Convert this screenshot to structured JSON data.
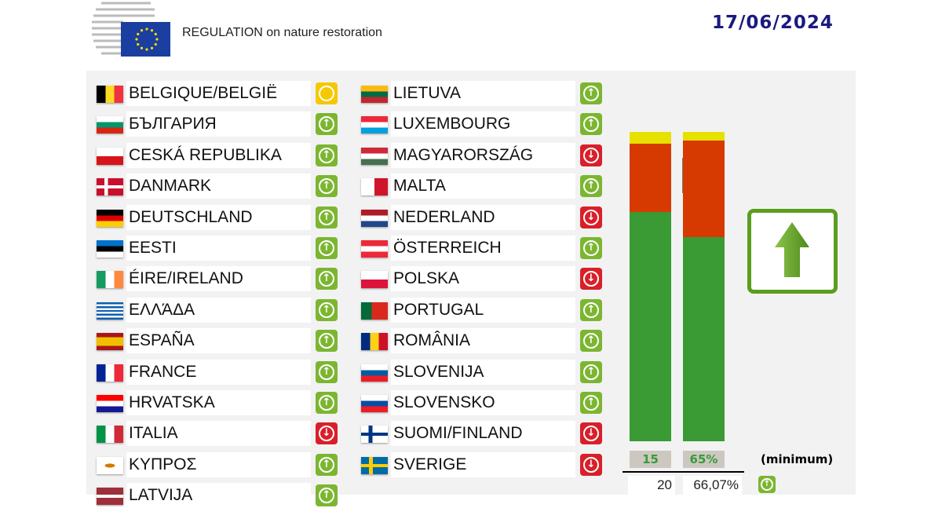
{
  "header": {
    "title": "REGULATION on nature restoration",
    "date": "17/06/2024"
  },
  "colors": {
    "yes": "#7cb631",
    "no": "#d8202a",
    "abstain": "#f5c800",
    "bar_yes": "#3a9a34",
    "bar_no": "#d63a00",
    "bar_abstain": "#e6e100"
  },
  "countries_left": [
    {
      "name": "BELGIQUE/BELGIË",
      "flag": "be",
      "vote": "abstain"
    },
    {
      "name": "БЪЛГАРИЯ",
      "flag": "bg",
      "vote": "yes"
    },
    {
      "name": "CESKÁ REPUBLIKA",
      "flag": "cz",
      "vote": "yes"
    },
    {
      "name": "DANMARK",
      "flag": "dk",
      "vote": "yes"
    },
    {
      "name": "DEUTSCHLAND",
      "flag": "de",
      "vote": "yes"
    },
    {
      "name": "EESTI",
      "flag": "ee",
      "vote": "yes"
    },
    {
      "name": "ÉIRE/IRELAND",
      "flag": "ie",
      "vote": "yes"
    },
    {
      "name": "ΕΛΛΆΔΑ",
      "flag": "gr",
      "vote": "yes"
    },
    {
      "name": "ESPAÑA",
      "flag": "es",
      "vote": "yes"
    },
    {
      "name": "FRANCE",
      "flag": "fr",
      "vote": "yes"
    },
    {
      "name": "HRVATSKA",
      "flag": "hr",
      "vote": "yes"
    },
    {
      "name": "ITALIA",
      "flag": "it",
      "vote": "no"
    },
    {
      "name": "ΚΥΠΡΟΣ",
      "flag": "cy",
      "vote": "yes"
    },
    {
      "name": "LATVIJA",
      "flag": "lv",
      "vote": "yes"
    }
  ],
  "countries_right": [
    {
      "name": "LIETUVA",
      "flag": "lt",
      "vote": "yes"
    },
    {
      "name": "LUXEMBOURG",
      "flag": "lu",
      "vote": "yes"
    },
    {
      "name": "MAGYARORSZÁG",
      "flag": "hu",
      "vote": "no"
    },
    {
      "name": "MALTA",
      "flag": "mt",
      "vote": "yes"
    },
    {
      "name": "NEDERLAND",
      "flag": "nl",
      "vote": "no"
    },
    {
      "name": "ÖSTERREICH",
      "flag": "at",
      "vote": "yes"
    },
    {
      "name": "POLSKA",
      "flag": "pl",
      "vote": "no"
    },
    {
      "name": "PORTUGAL",
      "flag": "pt",
      "vote": "yes"
    },
    {
      "name": "ROMÂNIA",
      "flag": "ro",
      "vote": "yes"
    },
    {
      "name": "SLOVENIJA",
      "flag": "si",
      "vote": "yes"
    },
    {
      "name": "SLOVENSKO",
      "flag": "sk",
      "vote": "yes"
    },
    {
      "name": "SUOMI/FINLAND",
      "flag": "fi",
      "vote": "no"
    },
    {
      "name": "SVERIGE",
      "flag": "se",
      "vote": "no"
    }
  ],
  "summary": {
    "member_states": {
      "icon": "eu-map-icon",
      "yes": 20,
      "no": 6,
      "abstain": 1,
      "threshold": "15",
      "result": "20"
    },
    "population": {
      "icon": "people-icon",
      "yes_pct": 66.07,
      "no_pct": 31.1,
      "abstain_pct": 2.83,
      "threshold": "65%",
      "result": "66,07%"
    },
    "threshold_label": "(minimum)",
    "outcome": "adopted"
  }
}
